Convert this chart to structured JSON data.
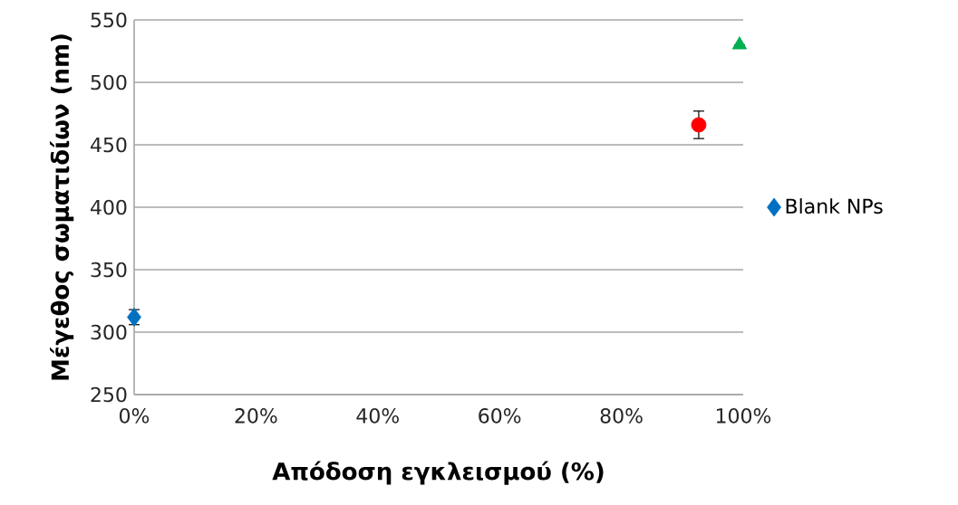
{
  "chart_data": {
    "type": "scatter",
    "xlabel": "Απόδοση εγκλεισμού (%)",
    "ylabel": "Μέγεθος σωματιδίων (nm)",
    "xlim": [
      0,
      100
    ],
    "ylim": [
      250,
      550
    ],
    "xticks": [
      {
        "value": 0,
        "label": "0%"
      },
      {
        "value": 20,
        "label": "20%"
      },
      {
        "value": 40,
        "label": "40%"
      },
      {
        "value": 60,
        "label": "60%"
      },
      {
        "value": 80,
        "label": "80%"
      },
      {
        "value": 100,
        "label": "100%"
      }
    ],
    "yticks": [
      250,
      300,
      350,
      400,
      450,
      500,
      550
    ],
    "grid": "y",
    "legend": "right",
    "series": [
      {
        "name": "Blank NPs",
        "color": "#0070c0",
        "marker": "diamond",
        "x": [
          0
        ],
        "values": [
          312
        ],
        "errors": [
          6
        ]
      },
      {
        "color": "#ff0000",
        "marker": "circle",
        "x": [
          92.7
        ],
        "values": [
          466
        ],
        "errors": [
          11
        ]
      },
      {
        "color": "#00b050",
        "marker": "triangle",
        "x": [
          99.4
        ],
        "values": [
          530
        ]
      }
    ]
  }
}
